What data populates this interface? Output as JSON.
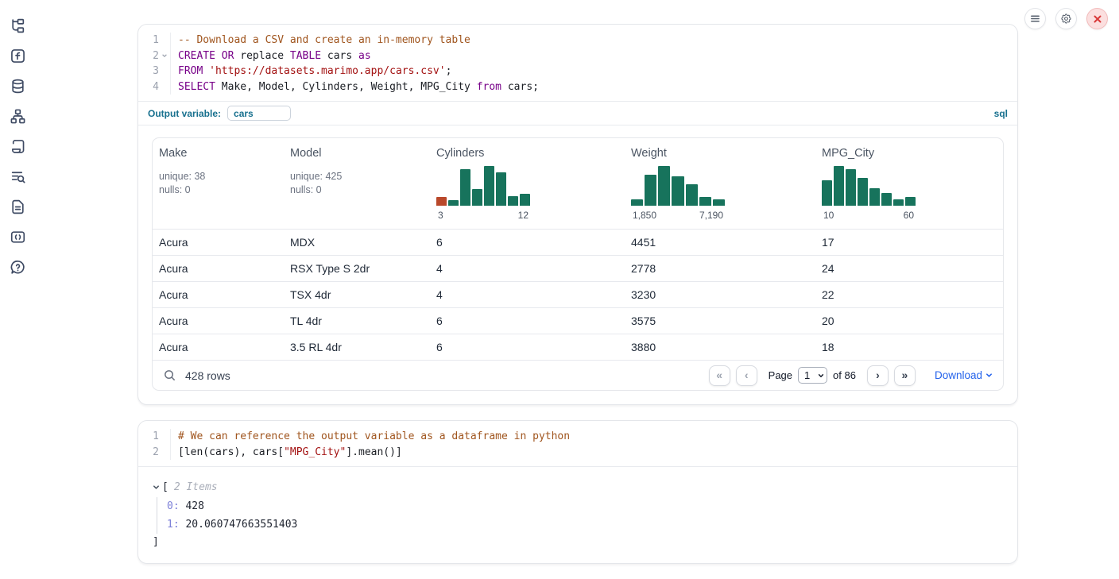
{
  "colors": {
    "hist_bar": "#17735c",
    "hist_highlight": "#b9482a",
    "accent_teal": "#17708e",
    "link_blue": "#2563eb",
    "keyword": "#770088",
    "comment": "#a0551e",
    "string": "#a31111"
  },
  "topbar": {
    "buttons": [
      {
        "icon": "hamburger-menu-icon"
      },
      {
        "icon": "gear-icon"
      },
      {
        "icon": "close-icon"
      }
    ]
  },
  "sidebar": {
    "items": [
      {
        "icon": "file-tree-icon"
      },
      {
        "icon": "variables-f-icon"
      },
      {
        "icon": "database-icon"
      },
      {
        "icon": "dependency-graph-icon"
      },
      {
        "icon": "scratchpad-scroll-icon"
      },
      {
        "icon": "outline-search-icon"
      },
      {
        "icon": "documentation-icon"
      },
      {
        "icon": "snippets-code-icon"
      },
      {
        "icon": "help-bubble-icon"
      }
    ]
  },
  "sql_cell": {
    "code": [
      {
        "num": "1",
        "segments": [
          "-- Download a CSV and create an in-memory table"
        ]
      },
      {
        "num": "2",
        "segments": [
          "CREATE",
          " ",
          "OR",
          " replace ",
          "TABLE",
          " cars ",
          "as"
        ]
      },
      {
        "num": "3",
        "segments": [
          "FROM",
          " ",
          "'https://datasets.marimo.app/cars.csv'",
          ";"
        ]
      },
      {
        "num": "4",
        "segments": [
          "SELECT",
          " Make, Model, Cylinders, Weight, MPG_City ",
          "from",
          " cars;"
        ]
      }
    ],
    "output_variable": {
      "label": "Output variable:",
      "value": "cars"
    },
    "language_badge": "sql",
    "table": {
      "columns": [
        {
          "title": "Make",
          "stats": [
            "unique: 38",
            "nulls: 0"
          ]
        },
        {
          "title": "Model",
          "stats": [
            "unique: 425",
            "nulls: 0"
          ]
        },
        {
          "title": "Cylinders",
          "histogram": {
            "bars": [
              0.23,
              0.14,
              0.92,
              0.42,
              1,
              0.85,
              0.24,
              0.3
            ],
            "highlight_index": 0,
            "min_label": "3",
            "max_label": "12"
          }
        },
        {
          "title": "Weight",
          "histogram": {
            "bars": [
              0.17,
              0.78,
              1,
              0.75,
              0.55,
              0.22,
              0.16
            ],
            "min_label": "1,850",
            "max_label": "7,190"
          }
        },
        {
          "title": "MPG_City",
          "histogram": {
            "bars": [
              0.64,
              1,
              0.93,
              0.71,
              0.44,
              0.33,
              0.16,
              0.23
            ],
            "min_label": "10",
            "max_label": "60"
          }
        }
      ],
      "rows": [
        [
          "Acura",
          "MDX",
          "6",
          "4451",
          "17"
        ],
        [
          "Acura",
          "RSX Type S 2dr",
          "4",
          "2778",
          "24"
        ],
        [
          "Acura",
          "TSX 4dr",
          "4",
          "3230",
          "22"
        ],
        [
          "Acura",
          "TL 4dr",
          "6",
          "3575",
          "20"
        ],
        [
          "Acura",
          "3.5 RL 4dr",
          "6",
          "3880",
          "18"
        ]
      ],
      "footer": {
        "row_count": "428 rows",
        "page_label": "Page",
        "page_value": "1",
        "of_label": "of 86",
        "download_label": "Download",
        "pager_icons": {
          "first": "«",
          "prev": "‹",
          "next": "›",
          "last": "»"
        }
      }
    }
  },
  "python_cell": {
    "code": [
      {
        "num": "1",
        "segments": [
          "# We can reference the output variable as a dataframe in python"
        ]
      },
      {
        "num": "2",
        "segments": [
          "[len(cars), cars[",
          "\"MPG_City\"",
          "].mean()]"
        ]
      }
    ],
    "output": {
      "open_bracket": "[",
      "items_label": "2 Items",
      "entries": [
        {
          "key": "0:",
          "value": "428"
        },
        {
          "key": "1:",
          "value": "20.060747663551403"
        }
      ],
      "close_bracket": "]"
    }
  }
}
